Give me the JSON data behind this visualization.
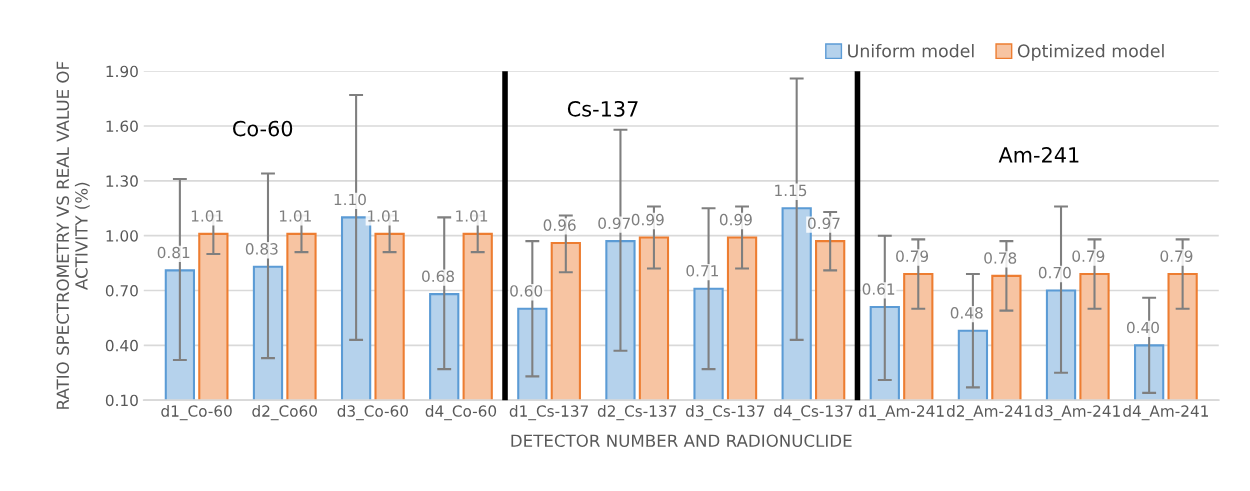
{
  "chart_data": {
    "type": "bar",
    "xlabel": "DETECTOR NUMBER AND RADIONUCLIDE",
    "ylabel": "RATIO SPECTROMETRY VS REAL VALUE OF ACTIVITY (%)",
    "categories": [
      "d1_Co-60",
      "d2_Co60",
      "d3_Co-60",
      "d4_Co-60",
      "d1_Cs-137",
      "d2_Cs-137",
      "d3_Cs-137",
      "d4_Cs-137",
      "d1_Am-241",
      "d2_Am-241",
      "d3_Am-241",
      "d4_Am-241"
    ],
    "series": [
      {
        "name": "Uniform model",
        "color": "#5b9bd5",
        "values": [
          0.81,
          0.83,
          1.1,
          0.68,
          0.6,
          0.97,
          0.71,
          1.15,
          0.61,
          0.48,
          0.7,
          0.4
        ],
        "value_labels": [
          "0.81",
          "0.83",
          "1.10",
          "0.68",
          "0.60",
          "0.97",
          "0.71",
          "1.15",
          "0.61",
          "0.48",
          "0.70",
          "0.40"
        ],
        "errors": [
          [
            0.32,
            1.31
          ],
          [
            0.33,
            1.34
          ],
          [
            0.43,
            1.77
          ],
          [
            0.27,
            1.1
          ],
          [
            0.23,
            0.97
          ],
          [
            0.37,
            1.58
          ],
          [
            0.27,
            1.15
          ],
          [
            0.43,
            1.86
          ],
          [
            0.21,
            1.0
          ],
          [
            0.17,
            0.79
          ],
          [
            0.25,
            1.16
          ],
          [
            0.14,
            0.66
          ]
        ]
      },
      {
        "name": "Optimized model",
        "color": "#ed7d31",
        "values": [
          1.01,
          1.01,
          1.01,
          1.01,
          0.96,
          0.99,
          0.99,
          0.97,
          0.79,
          0.78,
          0.79,
          0.79
        ],
        "value_labels": [
          "1.01",
          "1.01",
          "1.01",
          "1.01",
          "0.96",
          "0.99",
          "0.99",
          "0.97",
          "0.79",
          "0.78",
          "0.79",
          "0.79"
        ],
        "errors": [
          [
            0.9,
            1.11
          ],
          [
            0.91,
            1.11
          ],
          [
            0.91,
            1.11
          ],
          [
            0.91,
            1.11
          ],
          [
            0.8,
            1.11
          ],
          [
            0.82,
            1.16
          ],
          [
            0.82,
            1.16
          ],
          [
            0.81,
            1.13
          ],
          [
            0.6,
            0.98
          ],
          [
            0.59,
            0.97
          ],
          [
            0.6,
            0.98
          ],
          [
            0.6,
            0.98
          ]
        ]
      }
    ],
    "ylim": [
      0.1,
      1.9
    ],
    "yticks": [
      {
        "value": 0.1,
        "label": "0.10"
      },
      {
        "value": 0.4,
        "label": "0.40"
      },
      {
        "value": 0.7,
        "label": "0.70"
      },
      {
        "value": 1.0,
        "label": "1.00"
      },
      {
        "value": 1.3,
        "label": "1.30"
      },
      {
        "value": 1.6,
        "label": "1.60"
      },
      {
        "value": 1.9,
        "label": "1.90"
      }
    ],
    "annotations": [
      "Co-60",
      "Cs-137",
      "Am-241"
    ],
    "grid": "y",
    "legend": "top right"
  }
}
